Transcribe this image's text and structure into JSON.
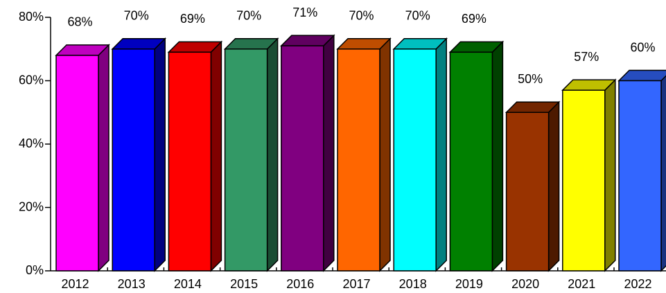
{
  "chart_data": {
    "type": "bar3d",
    "categories": [
      "2012",
      "2013",
      "2014",
      "2015",
      "2016",
      "2017",
      "2018",
      "2019",
      "2020",
      "2021",
      "2022"
    ],
    "values": [
      68,
      70,
      69,
      70,
      71,
      70,
      70,
      69,
      50,
      57,
      60
    ],
    "value_labels": [
      "68%",
      "70%",
      "69%",
      "70%",
      "71%",
      "70%",
      "70%",
      "69%",
      "50%",
      "57%",
      "60%"
    ],
    "colors": [
      "#ff00ff",
      "#0000ff",
      "#ff0000",
      "#339966",
      "#800080",
      "#ff6600",
      "#00ffff",
      "#008000",
      "#993300",
      "#ffff00",
      "#3366ff"
    ],
    "ylim": [
      0,
      80
    ],
    "yticks": [
      {
        "value": 0,
        "label": "0%"
      },
      {
        "value": 20,
        "label": "20%"
      },
      {
        "value": 40,
        "label": "40%"
      },
      {
        "value": 60,
        "label": "60%"
      },
      {
        "value": 80,
        "label": "80%"
      }
    ]
  }
}
